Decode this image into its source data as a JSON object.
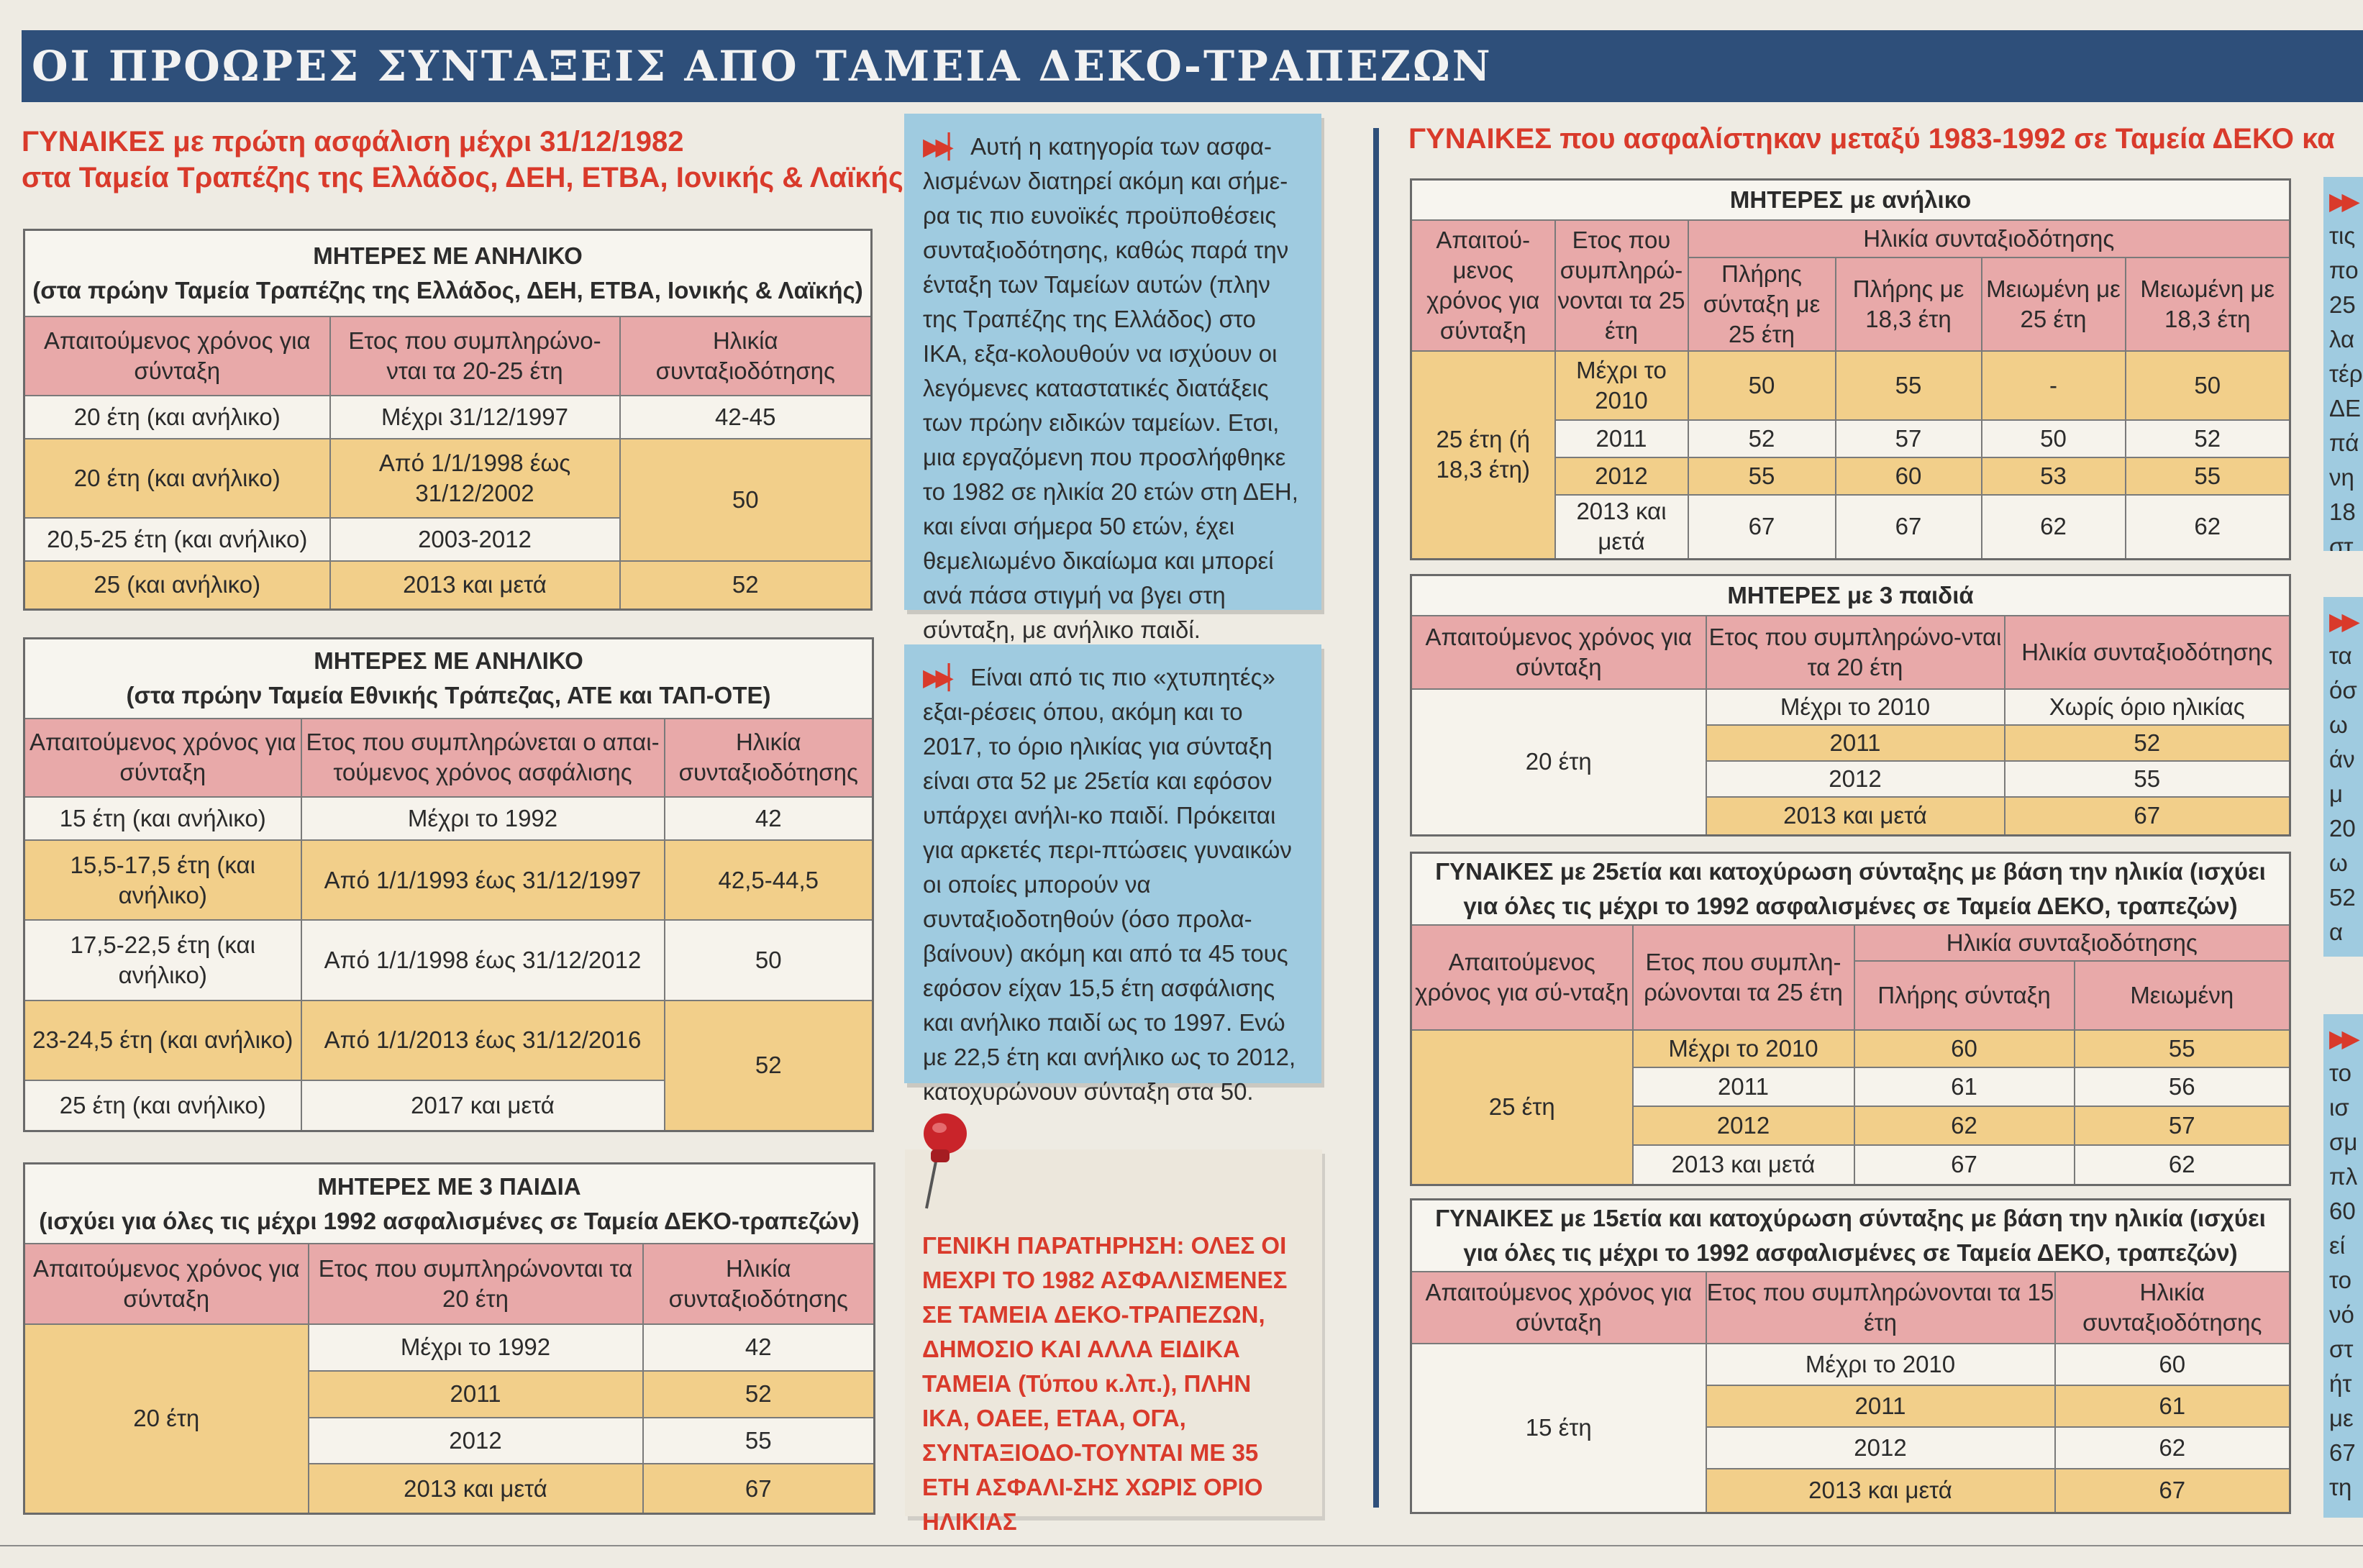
{
  "banner": {
    "title": "ΟΙ ΠΡΟΩΡΕΣ ΣΥΝΤΑΞΕΙΣ ΑΠΟ ΤΑΜΕΙΑ ΔΕΚΟ-ΤΡΑΠΕΖΩΝ"
  },
  "left": {
    "heading_line1": "ΓΥΝΑΙΚΕΣ με πρώτη ασφάλιση μέχρι 31/12/1982",
    "heading_line2": "στα Ταμεία Τραπέζης της Ελλάδος, ΔΕΗ, ΕΤΒΑ, Ιονικής & Λαϊκής",
    "table1": {
      "title1": "ΜΗΤΕΡΕΣ ΜΕ ΑΝΗΛΙΚΟ",
      "title2": "(στα πρώην Ταμεία Τραπέζης της Ελλάδος, ΔΕΗ, ΕΤΒΑ, Ιονικής & Λαϊκής)",
      "headers": [
        "Απαιτούμενος χρόνος για σύνταξη",
        "Ετος που συμπληρώνο-νται τα 20-25 έτη",
        "Ηλικία συνταξιοδότησης"
      ],
      "rows": [
        [
          "20 έτη (και ανήλικο)",
          "Μέχρι 31/12/1997",
          "42-45"
        ],
        [
          "20 έτη (και ανήλικο)",
          "Από 1/1/1998 έως 31/12/2002",
          "50"
        ],
        [
          "20,5-25 έτη (και ανήλικο)",
          "2003-2012",
          ""
        ],
        [
          "25 (και ανήλικο)",
          "2013 και μετά",
          "52"
        ]
      ]
    },
    "table2": {
      "title1": "ΜΗΤΕΡΕΣ ΜΕ ΑΝΗΛΙΚΟ",
      "title2": "(στα πρώην Ταμεία Εθνικής Τράπεζας, ΑΤΕ και ΤΑΠ-ΟΤΕ)",
      "headers": [
        "Απαιτούμενος χρόνος για σύνταξη",
        "Ετος που συμπληρώνεται ο απαι-τούμενος χρόνος ασφάλισης",
        "Ηλικία συνταξιοδότησης"
      ],
      "rows": [
        [
          "15 έτη (και ανήλικο)",
          "Μέχρι το 1992",
          "42"
        ],
        [
          "15,5-17,5 έτη (και ανήλικο)",
          "Από 1/1/1993 έως 31/12/1997",
          "42,5-44,5"
        ],
        [
          "17,5-22,5 έτη (και ανήλικο)",
          "Από 1/1/1998 έως 31/12/2012",
          "50"
        ],
        [
          "23-24,5 έτη (και ανήλικο)",
          "Από 1/1/2013 έως 31/12/2016",
          "52"
        ],
        [
          "25 έτη (και ανήλικο)",
          "2017 και μετά",
          ""
        ]
      ]
    },
    "table3": {
      "title1": "ΜΗΤΕΡΕΣ ΜΕ 3 ΠΑΙΔΙΑ",
      "title2": "(ισχύει για όλες τις μέχρι 1992 ασφαλισμένες σε Ταμεία ΔΕΚΟ-τραπεζών)",
      "headers": [
        "Απαιτούμενος χρόνος για σύνταξη",
        "Ετος που συμπληρώνονται τα 20 έτη",
        "Ηλικία συνταξιοδότησης"
      ],
      "group": "20 έτη",
      "rows": [
        [
          "Μέχρι το 1992",
          "42"
        ],
        [
          "2011",
          "52"
        ],
        [
          "2012",
          "55"
        ],
        [
          "2013 και μετά",
          "67"
        ]
      ]
    }
  },
  "middle": {
    "box1": "Αυτή η κατηγορία των ασφα-λισμένων διατηρεί ακόμη και σήμε-ρα τις πιο ευνοϊκές προϋποθέσεις συνταξιοδότησης, καθώς παρά την ένταξη των Ταμείων αυτών (πλην της Τραπέζης της Ελλάδος) στο ΙΚΑ, εξα-κολουθούν να ισχύουν οι λεγόμενες καταστατικές διατάξεις των πρώην ειδικών ταμείων. Ετσι, μια εργαζόμενη που προσλήφθηκε το 1982 σε ηλικία 20 ετών στη ΔΕΗ, και είναι σήμερα 50 ετών, έχει θεμελιωμένο δικαίωμα και μπορεί ανά πάσα στιγμή να βγει στη σύνταξη, με ανήλικο παιδί.",
    "box2": "Είναι από τις πιο «χτυπητές» εξαι-ρέσεις όπου, ακόμη και το 2017, το όριο ηλικίας για σύνταξη είναι στα 52 με 25ετία και εφόσον υπάρχει ανήλι-κο παιδί. Πρόκειται για αρκετές περι-πτώσεις γυναικών οι οποίες μπορούν να συνταξιοδοτηθούν (όσο προλα-βαίνουν) ακόμη και από τα 45 τους εφόσον είχαν 15,5 έτη ασφάλισης και ανήλικο παιδί ως το 1997. Ενώ με 22,5 έτη και ανήλικο ως το 2012, κατοχυρώνουν σύνταξη στα 50.",
    "note": "ΓΕΝΙΚΗ ΠΑΡΑΤΗΡΗΣΗ: ΟΛΕΣ ΟΙ ΜΕΧΡΙ ΤΟ 1982 ΑΣΦΑΛΙΣΜΕΝΕΣ ΣΕ ΤΑΜΕΙΑ ΔΕΚΟ-ΤΡΑΠΕΖΩΝ, ΔΗΜΟΣΙΟ ΚΑΙ ΑΛΛΑ ΕΙΔΙΚΑ ΤΑΜΕΙΑ (Τύπου κ.λπ.), ΠΛΗΝ ΙΚΑ, ΟΑΕΕ, ΕΤΑΑ, ΟΓΑ, ΣΥΝΤΑΞΙΟΔΟ-ΤΟΥΝΤΑΙ ΜΕ 35 ΕΤΗ ΑΣΦΑΛΙ-ΣΗΣ ΧΩΡΙΣ ΟΡΙΟ ΗΛΙΚΙΑΣ"
  },
  "right": {
    "heading": "ΓΥΝΑΙΚΕΣ που ασφαλίστηκαν μεταξύ 1983-1992 σε Ταμεία ΔΕΚΟ κα",
    "table4": {
      "title": "ΜΗΤΕΡΕΣ με ανήλικο",
      "h_req": "Απαιτού-μενος χρόνος για σύνταξη",
      "h_year": "Ετος που συμπληρώ-νονται τα 25 έτη",
      "h_age": "Ηλικία συνταξιοδότησης",
      "sub": [
        "Πλήρης σύνταξη με 25 έτη",
        "Πλήρης με 18,3 έτη",
        "Μειωμένη με 25 έτη",
        "Μειωμένη με 18,3 έτη"
      ],
      "group": "25 έτη (ή 18,3 έτη)",
      "rows": [
        [
          "Μέχρι το 2010",
          "50",
          "55",
          "-",
          "50"
        ],
        [
          "2011",
          "52",
          "57",
          "50",
          "52"
        ],
        [
          "2012",
          "55",
          "60",
          "53",
          "55"
        ],
        [
          "2013 και μετά",
          "67",
          "67",
          "62",
          "62"
        ]
      ]
    },
    "table5": {
      "title": "ΜΗΤΕΡΕΣ με 3 παιδιά",
      "headers": [
        "Απαιτούμενος χρόνος για σύνταξη",
        "Ετος που συμπληρώνο-νται τα 20 έτη",
        "Ηλικία συνταξιοδότησης"
      ],
      "group": "20 έτη",
      "rows": [
        [
          "Μέχρι το 2010",
          "Χωρίς όριο ηλικίας"
        ],
        [
          "2011",
          "52"
        ],
        [
          "2012",
          "55"
        ],
        [
          "2013 και μετά",
          "67"
        ]
      ]
    },
    "table6": {
      "title1": "ΓΥΝΑΙΚΕΣ με 25ετία και κατοχύρωση σύνταξης με βάση την ηλικία (ισχύει",
      "title2": "για όλες τις μέχρι το 1992 ασφαλισμένες σε Ταμεία ΔΕΚΟ, τραπεζών)",
      "h_req": "Απαιτούμενος χρόνος για σύ-νταξη",
      "h_year": "Ετος που συμπλη-ρώνονται τα 25 έτη",
      "h_age": "Ηλικία συνταξιοδότησης",
      "sub": [
        "Πλήρης σύνταξη",
        "Μειωμένη"
      ],
      "group": "25 έτη",
      "rows": [
        [
          "Μέχρι το 2010",
          "60",
          "55"
        ],
        [
          "2011",
          "61",
          "56"
        ],
        [
          "2012",
          "62",
          "57"
        ],
        [
          "2013 και μετά",
          "67",
          "62"
        ]
      ]
    },
    "table7": {
      "title1": "ΓΥΝΑΙΚΕΣ με 15ετία και κατοχύρωση σύνταξης με βάση την ηλικία (ισχύει",
      "title2": "για όλες τις μέχρι το 1992 ασφαλισμένες σε Ταμεία ΔΕΚΟ, τραπεζών)",
      "headers": [
        "Απαιτούμενος χρόνος για σύνταξη",
        "Ετος που συμπληρώνονται τα 15 έτη",
        "Ηλικία συνταξιοδότησης"
      ],
      "group": "15 έτη",
      "rows": [
        [
          "Μέχρι το 2010",
          "60"
        ],
        [
          "2011",
          "61"
        ],
        [
          "2012",
          "62"
        ],
        [
          "2013 και μετά",
          "67"
        ]
      ]
    }
  },
  "strip": {
    "block1": [
      "τις",
      "πο",
      "25",
      "λα",
      "τέρ",
      "ΔΕ",
      "πά",
      "νη",
      "18",
      "στ"
    ],
    "block2": [
      "τα",
      "όσ",
      "ω",
      "άν",
      "μ",
      "20",
      "ω",
      "52",
      "α"
    ],
    "block3": [
      "το",
      "ισ",
      "σμ",
      "πλ",
      "60",
      "εί",
      "το",
      "νό",
      "στ",
      "ήτ",
      "με",
      "67",
      "τη"
    ]
  },
  "colors": {
    "banner": "#2e4f7a",
    "accent_red": "#d93a2b",
    "header_pink": "#e8a9a9",
    "row_yellow": "#f2cf8a",
    "box_blue": "#9fcbe0"
  }
}
